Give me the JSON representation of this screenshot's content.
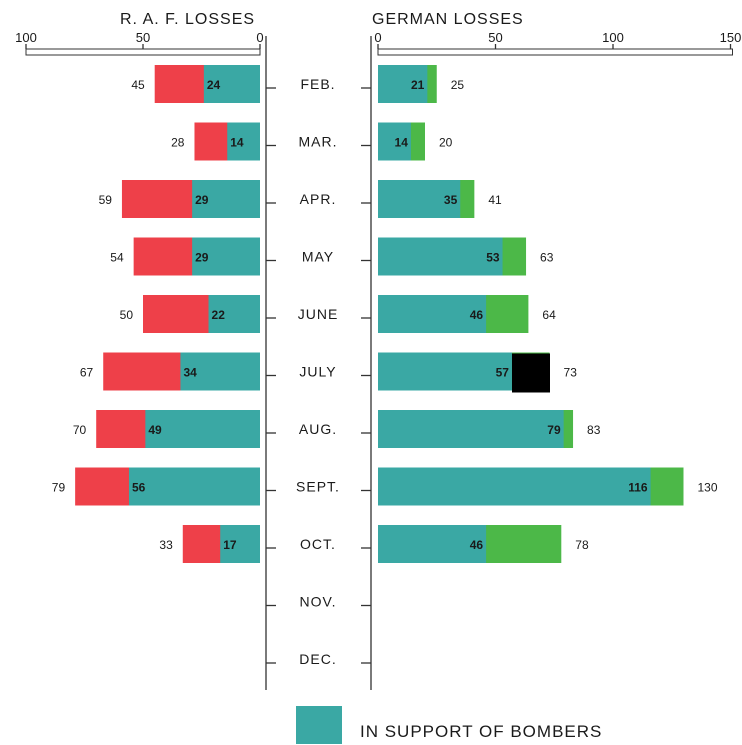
{
  "chart_data": {
    "type": "bar",
    "orientation": "horizontal-butterfly",
    "categories": [
      "FEB.",
      "MAR.",
      "APR.",
      "MAY",
      "JUNE",
      "JULY",
      "AUG.",
      "SEPT.",
      "OCT.",
      "NOV.",
      "DEC."
    ],
    "left_panel": {
      "title": "R. A. F. LOSSES",
      "xlim": [
        100,
        0
      ],
      "ticks": [
        "100",
        "50",
        "0"
      ],
      "totals": [
        45,
        28,
        59,
        54,
        50,
        67,
        70,
        79,
        33,
        null,
        null
      ],
      "in_support": [
        24,
        14,
        29,
        29,
        22,
        34,
        49,
        56,
        17,
        null,
        null
      ],
      "colors": {
        "total": "#ee4049",
        "in_support": "#3aa8a4"
      }
    },
    "right_panel": {
      "title": "GERMAN LOSSES",
      "xlim": [
        0,
        150
      ],
      "ticks": [
        "0",
        "50",
        "100",
        "150"
      ],
      "totals": [
        25,
        20,
        41,
        63,
        64,
        73,
        83,
        130,
        78,
        null,
        null
      ],
      "in_support": [
        21,
        14,
        35,
        53,
        46,
        57,
        79,
        116,
        46,
        null,
        null
      ],
      "colors": {
        "total": "#4cb848",
        "in_support": "#3aa8a4"
      }
    },
    "legend": {
      "label": "IN SUPPORT OF BOMBERS",
      "color": "#3aa8a4",
      "placement": "bottom-center"
    },
    "redaction_box": {
      "category": "JULY",
      "color": "#000000"
    }
  }
}
